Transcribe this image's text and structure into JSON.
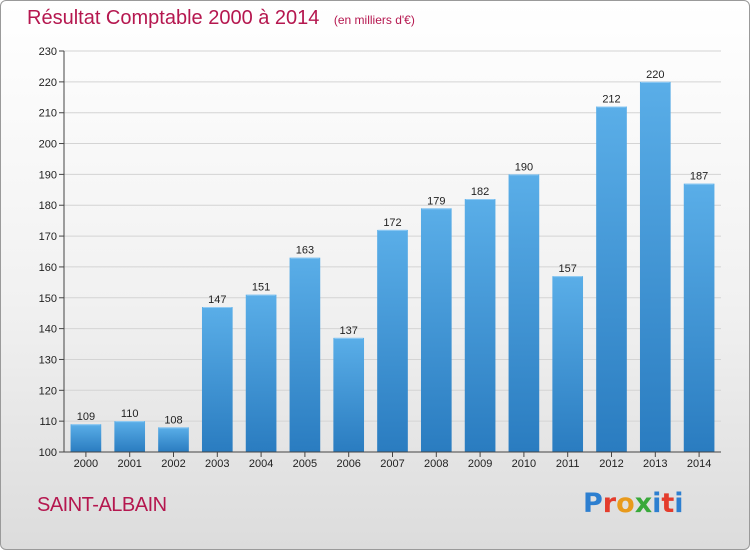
{
  "chart_data": {
    "type": "bar",
    "title": "Résultat Comptable 2000 à 2014",
    "subtitle": "(en milliers d'€)",
    "categories": [
      "2000",
      "2001",
      "2002",
      "2003",
      "2004",
      "2005",
      "2006",
      "2007",
      "2008",
      "2009",
      "2010",
      "2011",
      "2012",
      "2013",
      "2014"
    ],
    "values": [
      109,
      110,
      108,
      147,
      151,
      163,
      137,
      172,
      179,
      182,
      190,
      157,
      212,
      220,
      187
    ],
    "ylim": [
      100,
      230
    ],
    "yticks": [
      100,
      110,
      120,
      130,
      140,
      150,
      160,
      170,
      180,
      190,
      200,
      210,
      220,
      230
    ],
    "xlabel": "",
    "ylabel": "",
    "grid": true,
    "bar_color": "#3f97db"
  },
  "footer": {
    "city": "SAINT-ALBAIN",
    "brand_letters": [
      "P",
      "r",
      "o",
      "x",
      "i",
      "t",
      "i"
    ]
  },
  "colors": {
    "title": "#b5174f",
    "grid": "#d4d4d4"
  }
}
